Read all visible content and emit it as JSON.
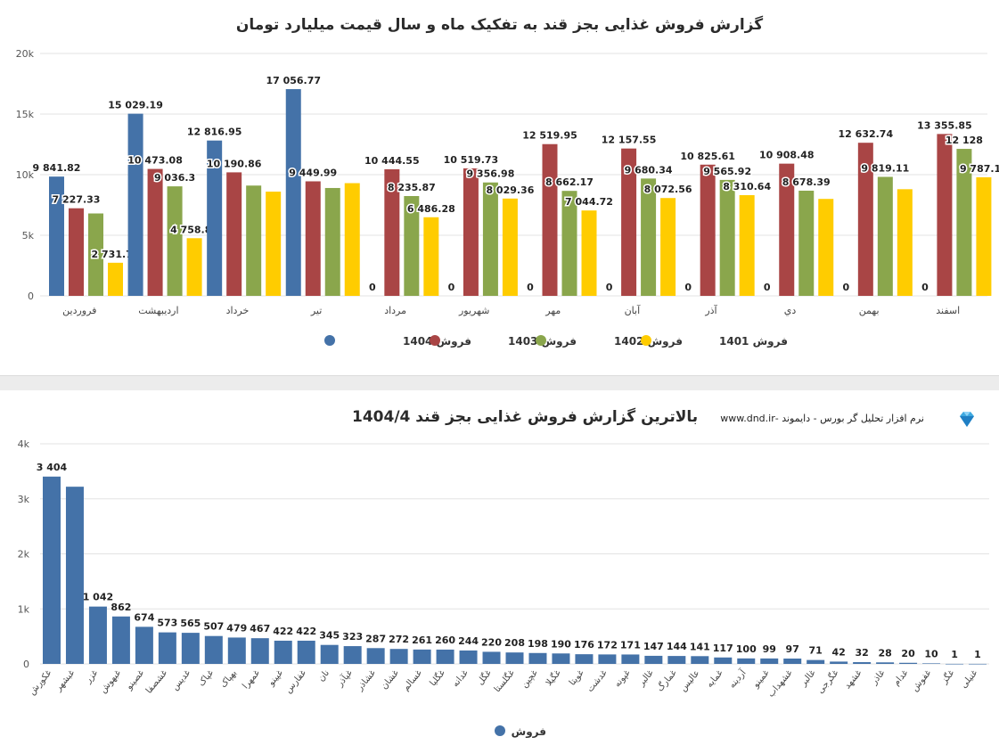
{
  "chart_data": [
    {
      "type": "bar",
      "title": "گزارش فروش غذایی بجز قند به تفکیک ماه و سال قیمت میلیارد تومان",
      "categories": [
        "فروردین",
        "اردیبهشت",
        "خرداد",
        "تیر",
        "مرداد",
        "شهریور",
        "مهر",
        "آبان",
        "آذر",
        "دي",
        "بهمن",
        "اسفند"
      ],
      "series": [
        {
          "name": "فروش 1404",
          "color": "#4472a8",
          "values": [
            9841.82,
            15029.19,
            12816.95,
            17056.77,
            0,
            0,
            0,
            0,
            0,
            0,
            0,
            0
          ],
          "labels": [
            "9 841.82",
            "15 029.19",
            "12 816.95",
            "17 056.77",
            "0",
            "0",
            "0",
            "0",
            "0",
            "0",
            "0",
            "0"
          ]
        },
        {
          "name": "فروش 1403",
          "color": "#a94545",
          "values": [
            7227.33,
            10473.08,
            10190.86,
            9449.99,
            10444.55,
            10519.73,
            12519.95,
            12157.55,
            10825.61,
            10908.48,
            12632.74,
            13355.85
          ],
          "labels": [
            "7 227.33",
            "10 473.08",
            "10 190.86",
            "9 449.99",
            "10 444.55",
            "10 519.73",
            "12 519.95",
            "12 157.55",
            "10 825.61",
            "10 908.48",
            "12 632.74",
            "13 355.85"
          ]
        },
        {
          "name": "فروش 1402",
          "color": "#8aa64c",
          "values": [
            6800,
            9036.3,
            9100,
            8900,
            8235.87,
            9356.98,
            8662.17,
            9680.34,
            9565.92,
            8678.39,
            9819.11,
            12128
          ],
          "labels": [
            "",
            "9 036.3",
            "",
            "",
            "8 235.87",
            "9 356.98",
            "8 662.17",
            "9 680.34",
            "9 565.92",
            "8 678.39",
            "9 819.11",
            "12 128"
          ]
        },
        {
          "name": "فروش 1401",
          "color": "#ffcc00",
          "values": [
            2731.73,
            4758.85,
            8600,
            9300,
            6486.28,
            8029.36,
            7044.72,
            8072.56,
            8310.64,
            8000,
            8800,
            9787.13
          ],
          "labels": [
            "2 731.73",
            "4 758.85",
            "",
            "",
            "6 486.28",
            "8 029.36",
            "7 044.72",
            "8 072.56",
            "8 310.64",
            "",
            "",
            "9 787.13"
          ]
        }
      ],
      "yticks": [
        "0",
        "5k",
        "10k",
        "15k",
        "20k"
      ],
      "ylim": [
        0,
        20000
      ],
      "legend_position": "bottom",
      "grid": true
    },
    {
      "type": "bar",
      "title": "بالاترین گزارش فروش غذایی بجز قند 1404/4",
      "categories": [
        "غکورش",
        "غبشهر",
        "غزر",
        "غبهوش",
        "غصینو",
        "غشصفا",
        "غدیس",
        "غپاک",
        "بهپاک",
        "غمهرا",
        "غپینو",
        "غفارس",
        "نان",
        "غپآذر",
        "غشاذر",
        "غشان",
        "غسالم",
        "غگلیا",
        "غدانه",
        "غگل",
        "غگلستا",
        "غچین",
        "غگیلا",
        "غویتا",
        "غدشت",
        "غپونه",
        "غالبر",
        "غمارگ",
        "عالیس",
        "غمایه",
        "آردینه",
        "غمینو",
        "غشهداب",
        "غالبر",
        "غگرجی",
        "غشهد",
        "غاذر",
        "غدام",
        "غفوش",
        "غگز",
        "غنیلی"
      ],
      "series": [
        {
          "name": "فروش",
          "color": "#4472a8",
          "values": [
            3404,
            3220,
            1042,
            862,
            674,
            573,
            565,
            507,
            479,
            467,
            422,
            422,
            345,
            323,
            287,
            272,
            261,
            260,
            244,
            220,
            208,
            198,
            190,
            176,
            172,
            171,
            147,
            144,
            141,
            117,
            100,
            99,
            97,
            71,
            42,
            32,
            28,
            20,
            10,
            1,
            1
          ],
          "labels": [
            "3 404",
            "",
            "1 042",
            "862",
            "674",
            "573",
            "565",
            "507",
            "479",
            "467",
            "422",
            "422",
            "345",
            "323",
            "287",
            "272",
            "261",
            "260",
            "244",
            "220",
            "208",
            "198",
            "190",
            "176",
            "172",
            "171",
            "147",
            "144",
            "141",
            "117",
            "100",
            "99",
            "97",
            "71",
            "42",
            "32",
            "28",
            "20",
            "10",
            "1",
            "1"
          ]
        }
      ],
      "yticks": [
        "0",
        "1k",
        "2k",
        "3k",
        "4k"
      ],
      "ylim": [
        0,
        4000
      ],
      "legend_position": "bottom",
      "grid": true
    }
  ],
  "branding": {
    "text": "نرم افزار تحلیل گر بورس - دایموند -www.dnd.ir"
  }
}
